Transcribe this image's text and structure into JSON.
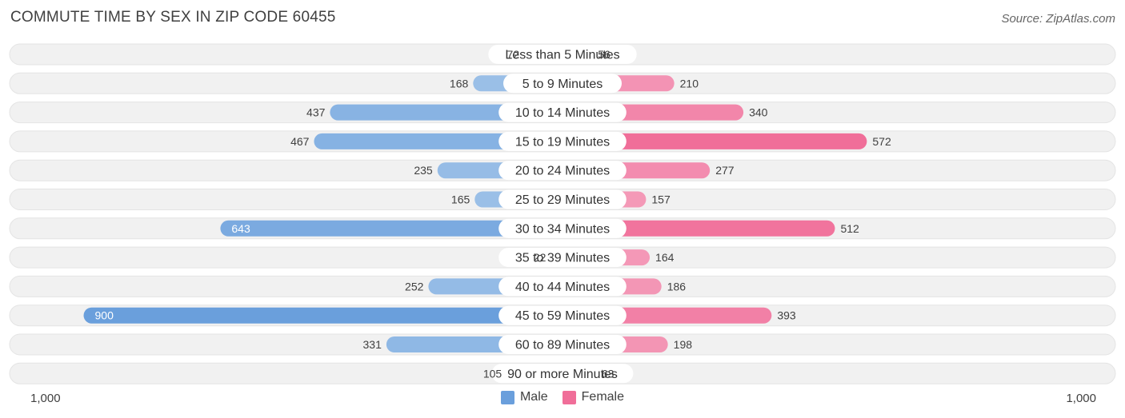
{
  "title": "COMMUTE TIME BY SEX IN ZIP CODE 60455",
  "source": "Source: ZipAtlas.com",
  "colors": {
    "male_light": "#a5c6ea",
    "male_dark": "#6a9fdc",
    "female_light": "#f5a9c3",
    "female_dark": "#f06e99",
    "track": "#f1f1f1"
  },
  "legend": {
    "male_label": "Male",
    "female_label": "Female"
  },
  "axis": {
    "left_label": "1,000",
    "right_label": "1,000"
  },
  "chart_data": {
    "type": "bar",
    "orientation": "horizontal-diverging",
    "title": "COMMUTE TIME BY SEX IN ZIP CODE 60455",
    "categories": [
      "Less than 5 Minutes",
      "5 to 9 Minutes",
      "10 to 14 Minutes",
      "15 to 19 Minutes",
      "20 to 24 Minutes",
      "25 to 29 Minutes",
      "30 to 34 Minutes",
      "35 to 39 Minutes",
      "40 to 44 Minutes",
      "45 to 59 Minutes",
      "60 to 89 Minutes",
      "90 or more Minutes"
    ],
    "series": [
      {
        "name": "Male",
        "values": [
          72,
          168,
          437,
          467,
          235,
          165,
          643,
          22,
          252,
          900,
          331,
          105
        ]
      },
      {
        "name": "Female",
        "values": [
          56,
          210,
          340,
          572,
          277,
          157,
          512,
          164,
          186,
          393,
          198,
          63
        ]
      }
    ],
    "xlim": [
      -1000,
      1000
    ],
    "legend_position": "bottom-center"
  }
}
